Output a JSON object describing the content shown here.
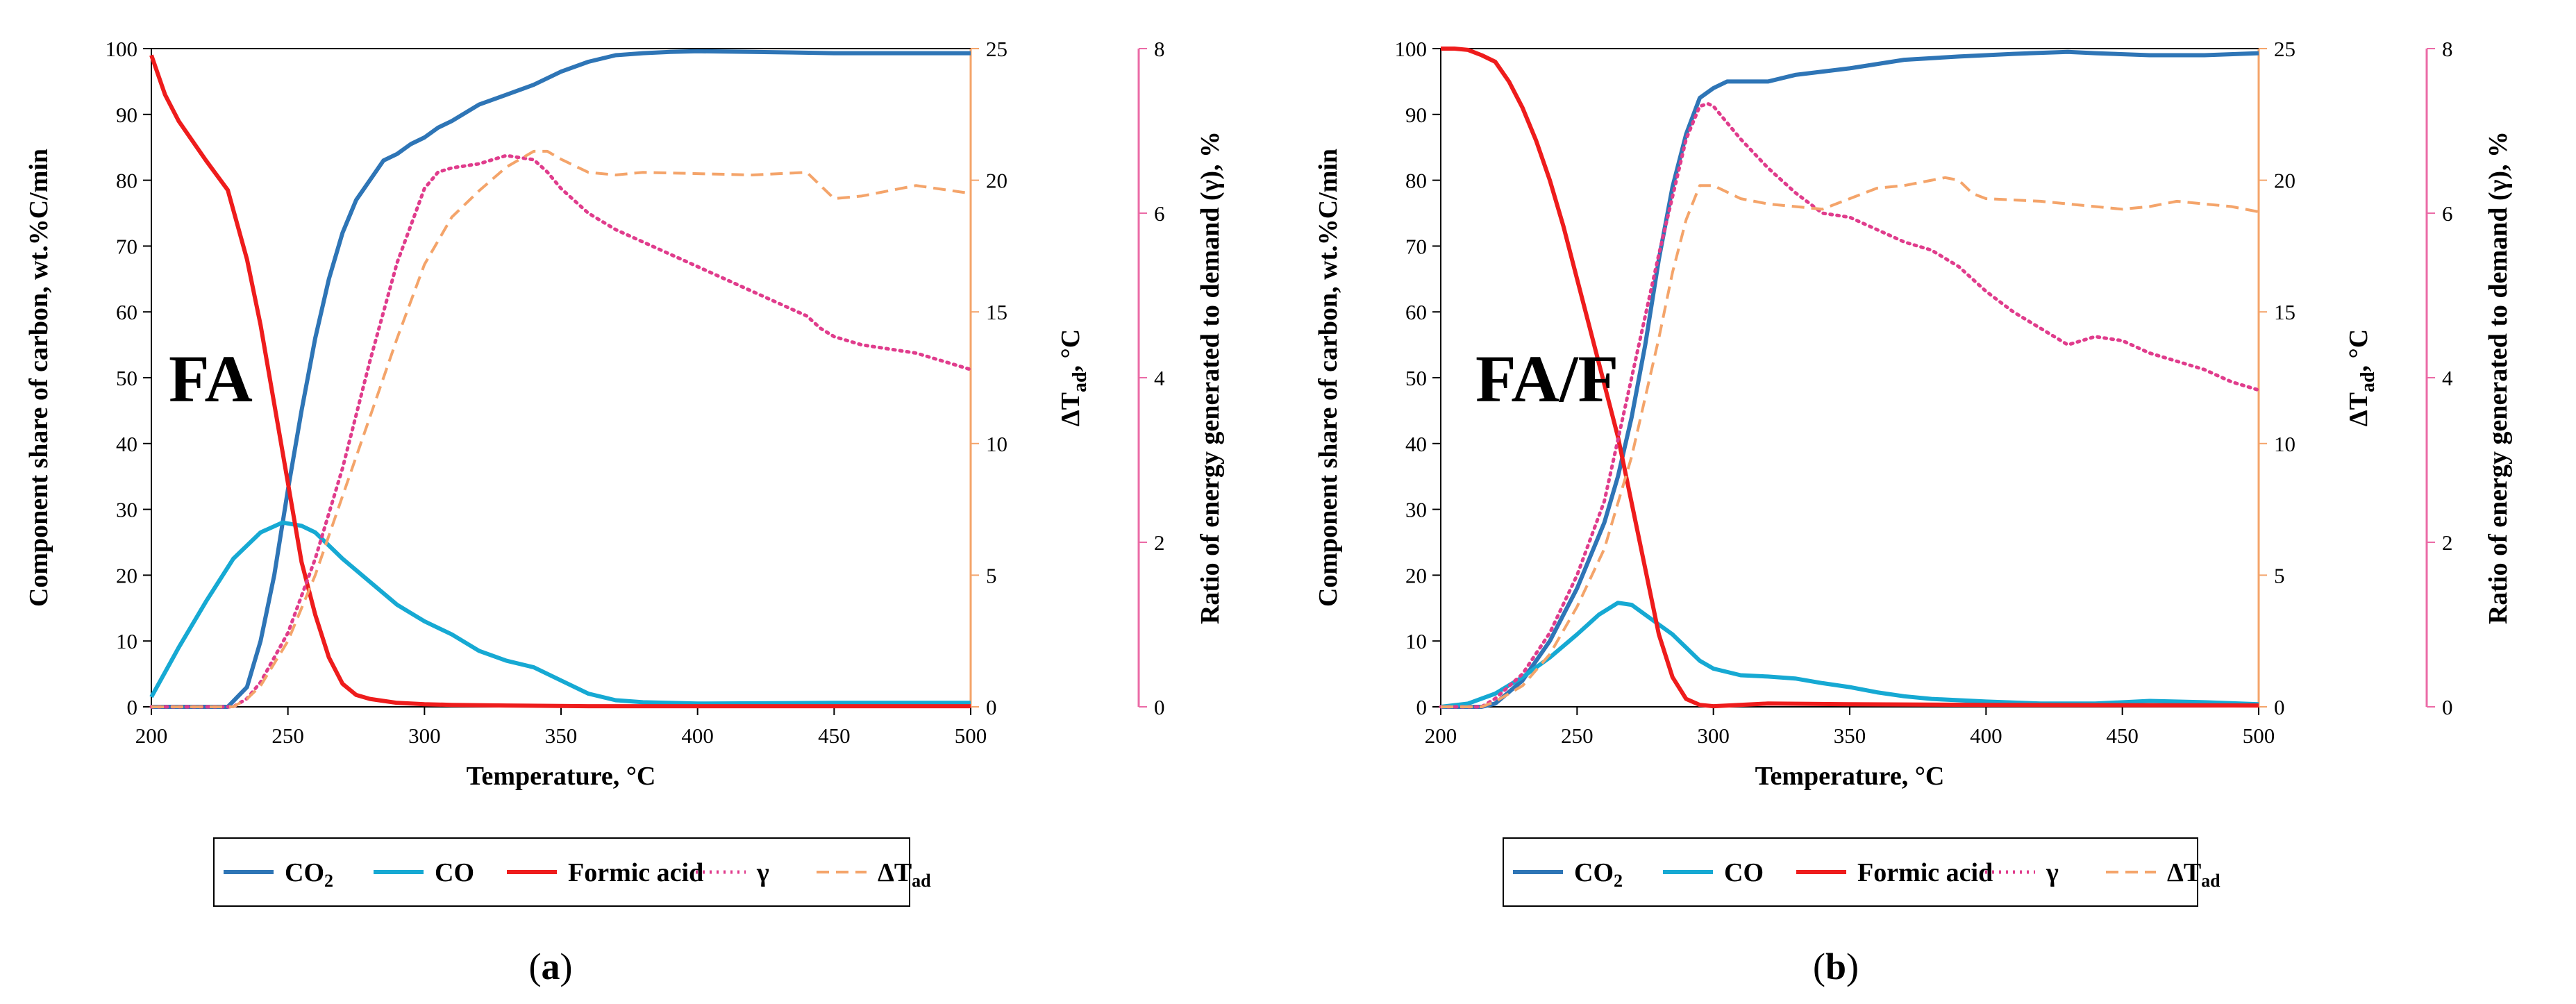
{
  "colors": {
    "co2": "#2E75B6",
    "co": "#16A9D3",
    "formic_acid": "#EE1C1C",
    "gamma": "#E03C8C",
    "dtad": "#F4A46A",
    "right_axis_mid": "#F4A46A",
    "right_axis_far": "#EB6BA6"
  },
  "chart_data": [
    {
      "type": "line",
      "panel_label": "(a)",
      "annotation": "FA",
      "xlabel": "Temperature, °C",
      "ylabel": "Component share of carbon, wt.%C/min",
      "y2label": "ΔTad, °C",
      "y3label": "Ratio of energy generated to demand (γ), %",
      "xlim": [
        200,
        500
      ],
      "ylim": [
        0,
        100
      ],
      "y2lim": [
        0,
        25
      ],
      "y3lim": [
        0,
        8
      ],
      "xticks": [
        "200",
        "250",
        "300",
        "350",
        "400",
        "450",
        "500"
      ],
      "yticks": [
        "0",
        "10",
        "20",
        "30",
        "40",
        "50",
        "60",
        "70",
        "80",
        "90",
        "100"
      ],
      "y2ticks": [
        "0",
        "5",
        "10",
        "15",
        "20",
        "25"
      ],
      "y3ticks": [
        "0",
        "2",
        "4",
        "6",
        "8"
      ],
      "legend": [
        "CO2",
        "CO",
        "Formic acid",
        "γ",
        "ΔTad"
      ],
      "series": [
        {
          "name": "CO2",
          "axis": "left",
          "style": "solid",
          "x": [
            200,
            220,
            228,
            235,
            240,
            245,
            250,
            255,
            260,
            265,
            270,
            275,
            280,
            285,
            290,
            295,
            300,
            305,
            310,
            320,
            330,
            340,
            350,
            360,
            370,
            380,
            390,
            400,
            420,
            450,
            500
          ],
          "values": [
            0,
            0,
            0,
            3,
            10,
            20,
            33,
            45,
            56,
            65,
            72,
            77,
            80,
            83,
            84,
            85.5,
            86.5,
            88,
            89,
            91.5,
            93,
            94.5,
            96.5,
            98,
            99,
            99.3,
            99.5,
            99.6,
            99.5,
            99.3,
            99.3
          ]
        },
        {
          "name": "CO",
          "axis": "left",
          "style": "solid",
          "x": [
            200,
            210,
            220,
            230,
            240,
            248,
            255,
            260,
            265,
            270,
            280,
            290,
            300,
            310,
            320,
            330,
            340,
            350,
            360,
            370,
            380,
            400,
            450,
            500
          ],
          "values": [
            1.5,
            9,
            16,
            22.5,
            26.5,
            28,
            27.5,
            26.5,
            24.5,
            22.5,
            19,
            15.5,
            13,
            11,
            8.5,
            7,
            6,
            4,
            2,
            1,
            0.7,
            0.5,
            0.6,
            0.6
          ]
        },
        {
          "name": "Formic acid",
          "axis": "left",
          "style": "solid",
          "x": [
            200,
            205,
            210,
            220,
            228,
            235,
            240,
            245,
            250,
            255,
            260,
            265,
            270,
            275,
            280,
            285,
            290,
            300,
            310,
            330,
            360,
            400,
            500
          ],
          "values": [
            99,
            93,
            89,
            83,
            78.5,
            68,
            58,
            46,
            34,
            22,
            14,
            7.5,
            3.5,
            1.8,
            1.2,
            0.9,
            0.6,
            0.4,
            0.3,
            0.2,
            0.1,
            0.1,
            0.1
          ]
        },
        {
          "name": "γ",
          "axis": "right-far",
          "style": "dotted",
          "x": [
            200,
            230,
            235,
            240,
            250,
            260,
            270,
            280,
            290,
            300,
            305,
            310,
            320,
            330,
            340,
            345,
            350,
            360,
            370,
            380,
            400,
            420,
            440,
            445,
            450,
            460,
            480,
            500
          ],
          "values": [
            0,
            0,
            0.1,
            0.3,
            0.9,
            1.8,
            2.9,
            4.2,
            5.4,
            6.3,
            6.5,
            6.55,
            6.6,
            6.7,
            6.65,
            6.5,
            6.3,
            6.0,
            5.8,
            5.65,
            5.35,
            5.05,
            4.75,
            4.6,
            4.5,
            4.4,
            4.3,
            4.1
          ]
        },
        {
          "name": "ΔTad",
          "axis": "right-mid",
          "style": "dashed",
          "x": [
            200,
            230,
            235,
            240,
            250,
            260,
            270,
            280,
            290,
            300,
            310,
            320,
            330,
            340,
            345,
            350,
            360,
            370,
            380,
            400,
            420,
            440,
            445,
            450,
            460,
            480,
            500
          ],
          "values": [
            0,
            0,
            0.3,
            0.8,
            2.5,
            5,
            8,
            11,
            14,
            16.8,
            18.6,
            19.6,
            20.5,
            21.1,
            21.1,
            20.8,
            20.3,
            20.2,
            20.3,
            20.25,
            20.2,
            20.3,
            19.8,
            19.3,
            19.4,
            19.8,
            19.5
          ]
        }
      ]
    },
    {
      "type": "line",
      "panel_label": "(b)",
      "annotation": "FA/F",
      "xlabel": "Temperature, °C",
      "ylabel": "Component share of carbon, wt.%C/min",
      "y2label": "ΔTad, °C",
      "y3label": "Ratio of energy generated to demand (γ), %",
      "xlim": [
        200,
        500
      ],
      "ylim": [
        0,
        100
      ],
      "y2lim": [
        0,
        25
      ],
      "y3lim": [
        0,
        8
      ],
      "xticks": [
        "200",
        "250",
        "300",
        "350",
        "400",
        "450",
        "500"
      ],
      "yticks": [
        "0",
        "10",
        "20",
        "30",
        "40",
        "50",
        "60",
        "70",
        "80",
        "90",
        "100"
      ],
      "y2ticks": [
        "0",
        "5",
        "10",
        "15",
        "20",
        "25"
      ],
      "y3ticks": [
        "0",
        "2",
        "4",
        "6",
        "8"
      ],
      "legend": [
        "CO2",
        "CO",
        "Formic acid",
        "γ",
        "ΔTad"
      ],
      "series": [
        {
          "name": "CO2",
          "axis": "left",
          "style": "solid",
          "x": [
            200,
            215,
            220,
            230,
            240,
            250,
            260,
            265,
            270,
            275,
            280,
            285,
            290,
            295,
            300,
            305,
            310,
            320,
            330,
            350,
            370,
            390,
            410,
            430,
            440,
            460,
            480,
            500
          ],
          "values": [
            0,
            0,
            0.5,
            4,
            10,
            18,
            28,
            35,
            44,
            55,
            68,
            79,
            87,
            92.5,
            94,
            95,
            95,
            95,
            96,
            97,
            98.3,
            98.8,
            99.2,
            99.5,
            99.3,
            99,
            99,
            99.3
          ]
        },
        {
          "name": "CO",
          "axis": "left",
          "style": "solid",
          "x": [
            200,
            210,
            220,
            230,
            240,
            250,
            258,
            265,
            270,
            275,
            280,
            285,
            290,
            295,
            300,
            310,
            320,
            330,
            340,
            350,
            360,
            370,
            380,
            400,
            420,
            440,
            460,
            480,
            500
          ],
          "values": [
            0,
            0.5,
            2,
            4.5,
            7.5,
            11,
            14,
            15.8,
            15.5,
            14,
            12.5,
            11,
            9,
            7,
            5.8,
            4.8,
            4.6,
            4.3,
            3.6,
            3,
            2.2,
            1.6,
            1.2,
            0.8,
            0.5,
            0.5,
            0.9,
            0.7,
            0.4
          ]
        },
        {
          "name": "Formic acid",
          "axis": "left",
          "style": "solid",
          "x": [
            200,
            205,
            210,
            215,
            220,
            225,
            230,
            235,
            240,
            245,
            250,
            255,
            260,
            265,
            270,
            275,
            280,
            285,
            290,
            295,
            300,
            320,
            350,
            400,
            500
          ],
          "values": [
            100,
            100,
            99.8,
            99,
            98,
            95,
            91,
            86,
            80,
            73,
            65,
            57,
            49,
            41,
            31,
            21,
            11,
            4.5,
            1.2,
            0.3,
            0.1,
            0.5,
            0.4,
            0.3,
            0.2
          ]
        },
        {
          "name": "γ",
          "axis": "right-far",
          "style": "dotted",
          "x": [
            200,
            215,
            220,
            230,
            240,
            250,
            260,
            270,
            280,
            290,
            295,
            298,
            300,
            305,
            310,
            320,
            330,
            340,
            350,
            360,
            370,
            380,
            390,
            400,
            410,
            420,
            430,
            435,
            440,
            450,
            460,
            470,
            480,
            490,
            500
          ],
          "values": [
            0,
            0,
            0.1,
            0.4,
            0.9,
            1.6,
            2.5,
            4.0,
            5.5,
            6.9,
            7.3,
            7.33,
            7.3,
            7.1,
            6.9,
            6.55,
            6.25,
            6.0,
            5.95,
            5.8,
            5.65,
            5.55,
            5.35,
            5.05,
            4.8,
            4.6,
            4.4,
            4.45,
            4.5,
            4.45,
            4.3,
            4.2,
            4.1,
            3.95,
            3.85
          ]
        },
        {
          "name": "ΔTad",
          "axis": "right-mid",
          "style": "dashed",
          "x": [
            200,
            215,
            220,
            230,
            240,
            250,
            260,
            270,
            280,
            285,
            290,
            295,
            300,
            310,
            320,
            330,
            340,
            350,
            360,
            370,
            380,
            385,
            390,
            395,
            400,
            420,
            440,
            450,
            460,
            470,
            480,
            490,
            500
          ],
          "values": [
            0,
            0,
            0.2,
            0.8,
            2,
            3.8,
            6,
            9.5,
            14,
            16.5,
            18.5,
            19.8,
            19.8,
            19.3,
            19.1,
            19.0,
            18.9,
            19.3,
            19.7,
            19.8,
            20.0,
            20.1,
            20.0,
            19.5,
            19.3,
            19.2,
            19.0,
            18.9,
            19.0,
            19.2,
            19.1,
            19.0,
            18.8
          ]
        }
      ]
    }
  ]
}
